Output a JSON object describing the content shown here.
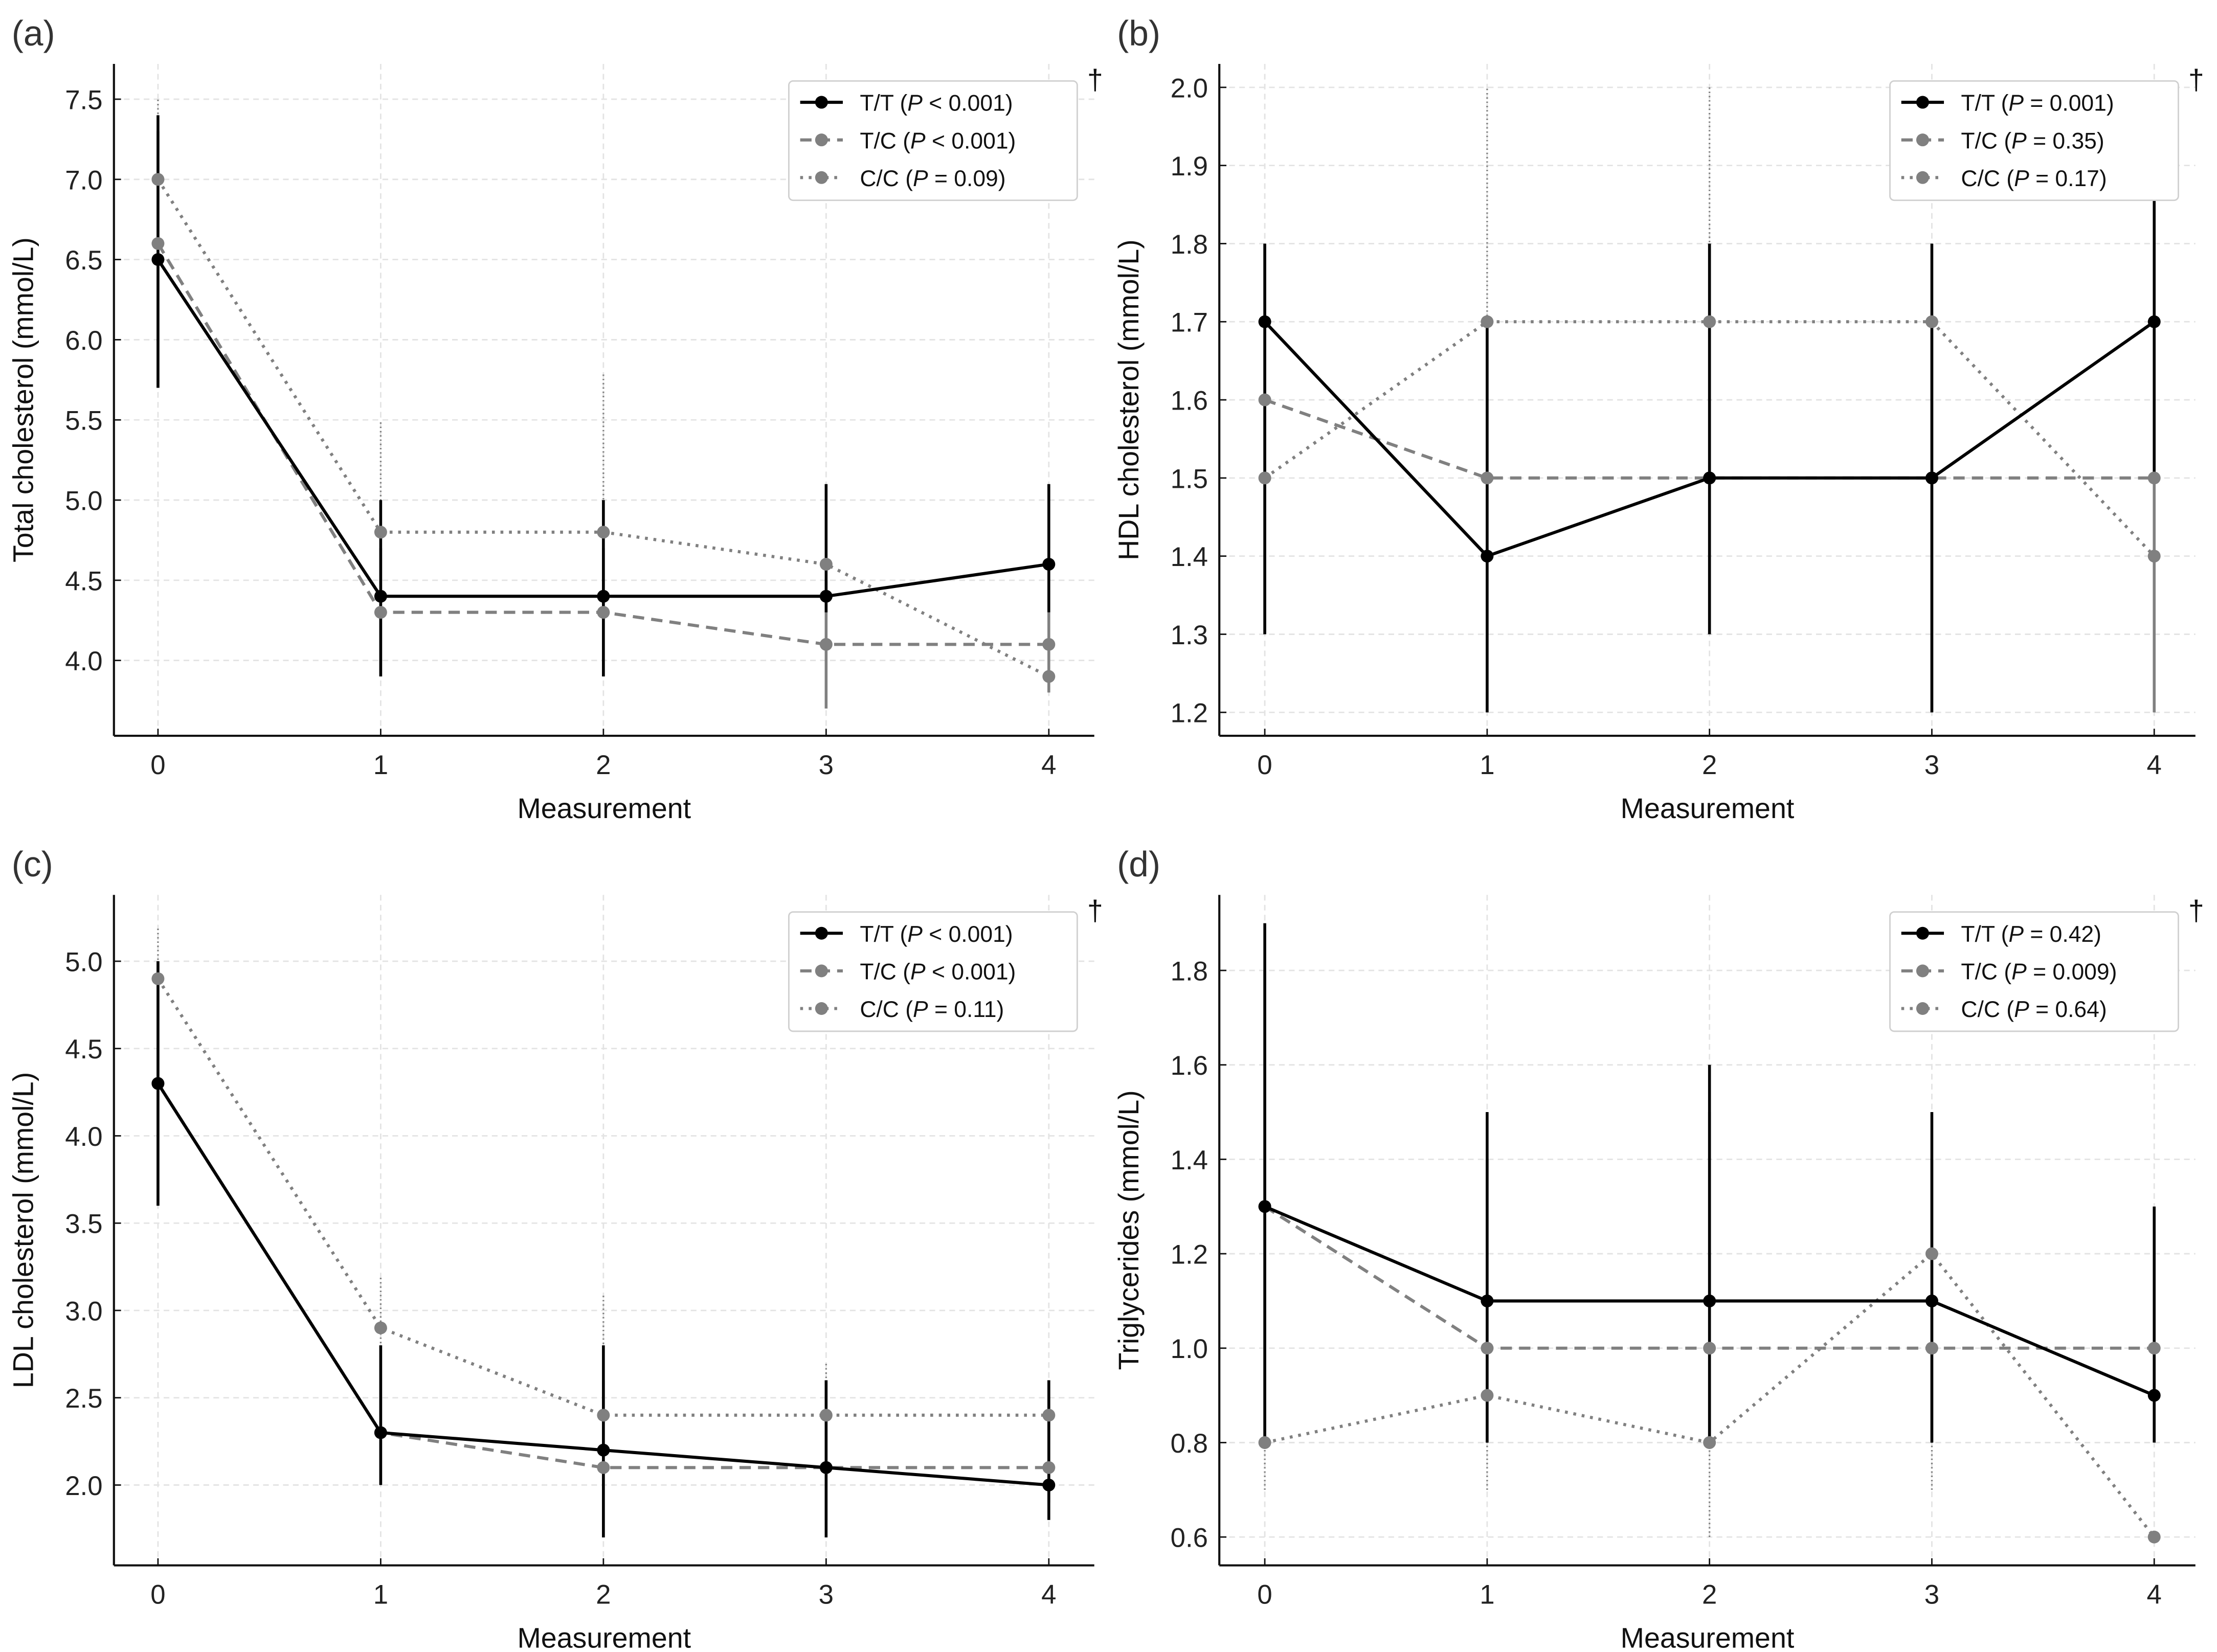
{
  "colors": {
    "tt": "#000000",
    "tc": "#808080",
    "cc": "#808080",
    "grid": "#e3e3e3"
  },
  "chart_data": [
    {
      "type": "line",
      "panel": "(a)",
      "ylabel": "Total cholesterol (mmol/L)",
      "xlabel": "Measurement",
      "x": [
        0,
        1,
        2,
        3,
        4
      ],
      "ylim": [
        3.53,
        7.72
      ],
      "yticks": [
        4.0,
        4.5,
        5.0,
        5.5,
        6.0,
        6.5,
        7.0,
        7.5
      ],
      "yfmt": 1,
      "dagger": "†",
      "legend_position": "top-right",
      "series": [
        {
          "key": "tt",
          "group": "T/T",
          "p": "< 0.001",
          "values": [
            6.5,
            4.4,
            4.4,
            4.4,
            4.6
          ],
          "ci": [
            [
              5.7,
              7.4
            ],
            [
              3.9,
              5.0
            ],
            [
              3.9,
              5.0
            ],
            [
              4.3,
              5.1
            ],
            [
              4.3,
              5.1
            ]
          ]
        },
        {
          "key": "tc",
          "group": "T/C",
          "p": "< 0.001",
          "values": [
            6.6,
            4.3,
            4.3,
            4.1,
            4.1
          ],
          "ci": [
            [
              5.7,
              7.3
            ],
            [
              3.9,
              4.7
            ],
            [
              3.9,
              4.7
            ],
            [
              3.7,
              4.5
            ],
            [
              3.8,
              4.3
            ]
          ]
        },
        {
          "key": "cc",
          "group": "C/C",
          "p": "= 0.09",
          "values": [
            7.0,
            4.8,
            4.8,
            4.6,
            3.9
          ],
          "ci": [
            [
              6.0,
              7.5
            ],
            [
              4.2,
              5.5
            ],
            [
              4.1,
              5.8
            ],
            [
              4.1,
              4.9
            ],
            [
              3.8,
              4.2
            ]
          ]
        }
      ]
    },
    {
      "type": "line",
      "panel": "(b)",
      "ylabel": "HDL cholesterol (mmol/L)",
      "xlabel": "Measurement",
      "x": [
        0,
        1,
        2,
        3,
        4
      ],
      "ylim": [
        1.17,
        2.03
      ],
      "yticks": [
        1.2,
        1.3,
        1.4,
        1.5,
        1.6,
        1.7,
        1.8,
        1.9,
        2.0
      ],
      "yfmt": 1,
      "dagger": "†",
      "legend_position": "top-right",
      "series": [
        {
          "key": "tt",
          "group": "T/T",
          "p": "= 0.001",
          "values": [
            1.7,
            1.4,
            1.5,
            1.5,
            1.7
          ],
          "ci": [
            [
              1.3,
              1.8
            ],
            [
              1.2,
              1.7
            ],
            [
              1.3,
              1.8
            ],
            [
              1.2,
              1.8
            ],
            [
              1.5,
              1.9
            ]
          ]
        },
        {
          "key": "tc",
          "group": "T/C",
          "p": "= 0.35",
          "values": [
            1.6,
            1.5,
            1.5,
            1.5,
            1.5
          ],
          "ci": [
            [
              1.3,
              1.8
            ],
            [
              1.2,
              1.7
            ],
            [
              1.3,
              1.8
            ],
            [
              1.2,
              1.7
            ],
            [
              1.2,
              1.7
            ]
          ]
        },
        {
          "key": "cc",
          "group": "C/C",
          "p": "= 0.17",
          "values": [
            1.5,
            1.7,
            1.7,
            1.7,
            1.4
          ],
          "ci": [
            [
              1.3,
              1.8
            ],
            [
              1.2,
              2.0
            ],
            [
              1.3,
              2.0
            ],
            [
              1.2,
              1.8
            ],
            [
              1.2,
              1.7
            ]
          ]
        }
      ]
    },
    {
      "type": "line",
      "panel": "(c)",
      "ylabel": "LDL cholesterol (mmol/L)",
      "xlabel": "Measurement",
      "x": [
        0,
        1,
        2,
        3,
        4
      ],
      "ylim": [
        1.54,
        5.38
      ],
      "yticks": [
        2.0,
        2.5,
        3.0,
        3.5,
        4.0,
        4.5,
        5.0
      ],
      "yfmt": 1,
      "dagger": "†",
      "legend_position": "top-right",
      "series": [
        {
          "key": "tt",
          "group": "T/T",
          "p": "< 0.001",
          "values": [
            4.3,
            2.3,
            2.2,
            2.1,
            2.0
          ],
          "ci": [
            [
              3.6,
              5.0
            ],
            [
              2.0,
              2.8
            ],
            [
              1.7,
              2.8
            ],
            [
              1.7,
              2.6
            ],
            [
              1.8,
              2.6
            ]
          ]
        },
        {
          "key": "tc",
          "group": "T/C",
          "p": "< 0.001",
          "values": [
            4.3,
            2.3,
            2.1,
            2.1,
            2.1
          ],
          "ci": [
            [
              3.6,
              5.0
            ],
            [
              2.0,
              2.8
            ],
            [
              1.7,
              2.6
            ],
            [
              1.8,
              2.6
            ],
            [
              1.9,
              2.6
            ]
          ]
        },
        {
          "key": "cc",
          "group": "C/C",
          "p": "= 0.11",
          "values": [
            4.9,
            2.9,
            2.4,
            2.4,
            2.4
          ],
          "ci": [
            [
              4.3,
              5.2
            ],
            [
              2.3,
              3.2
            ],
            [
              2.1,
              3.1
            ],
            [
              2.1,
              2.7
            ],
            [
              2.1,
              2.6
            ]
          ]
        }
      ]
    },
    {
      "type": "line",
      "panel": "(d)",
      "ylabel": "Triglycerides (mmol/L)",
      "xlabel": "Measurement",
      "x": [
        0,
        1,
        2,
        3,
        4
      ],
      "ylim": [
        0.54,
        1.96
      ],
      "yticks": [
        0.6,
        0.8,
        1.0,
        1.2,
        1.4,
        1.6,
        1.8
      ],
      "yfmt": 1,
      "dagger": "†",
      "legend_position": "top-right",
      "series": [
        {
          "key": "tt",
          "group": "T/T",
          "p": "= 0.42",
          "values": [
            1.3,
            1.1,
            1.1,
            1.1,
            0.9
          ],
          "ci": [
            [
              0.8,
              1.9
            ],
            [
              0.8,
              1.5
            ],
            [
              0.8,
              1.6
            ],
            [
              0.8,
              1.5
            ],
            [
              0.8,
              1.3
            ]
          ]
        },
        {
          "key": "tc",
          "group": "T/C",
          "p": "= 0.009",
          "values": [
            1.3,
            1.0,
            1.0,
            1.0,
            1.0
          ],
          "ci": [
            [
              0.8,
              1.8
            ],
            [
              0.8,
              1.4
            ],
            [
              0.8,
              1.5
            ],
            [
              0.8,
              1.4
            ],
            [
              0.8,
              1.0
            ]
          ]
        },
        {
          "key": "cc",
          "group": "C/C",
          "p": "= 0.64",
          "values": [
            0.8,
            0.9,
            0.8,
            1.2,
            0.6
          ],
          "ci": [
            [
              0.7,
              1.0
            ],
            [
              0.7,
              1.0
            ],
            [
              0.6,
              1.0
            ],
            [
              0.7,
              1.3
            ],
            [
              0.6,
              0.6
            ]
          ]
        }
      ]
    }
  ]
}
